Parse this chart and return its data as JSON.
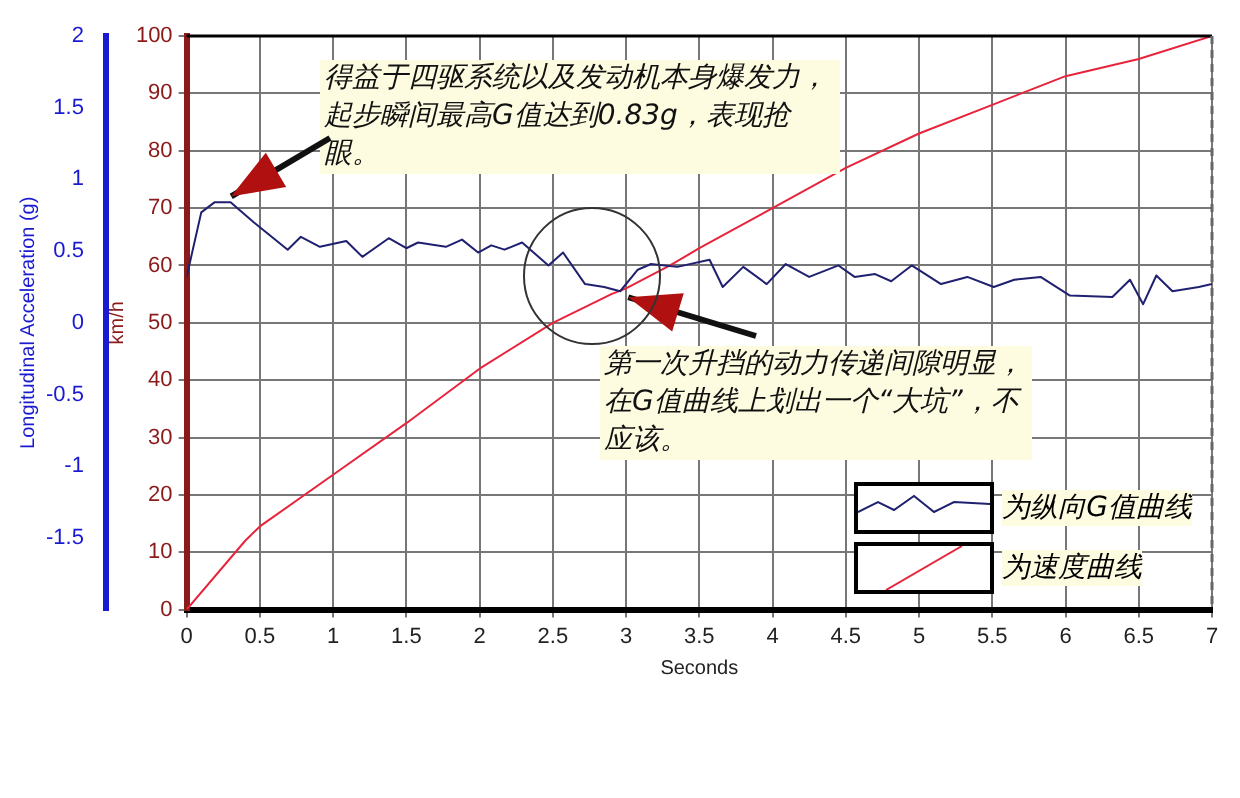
{
  "chart_data": {
    "type": "line",
    "xlabel": "Seconds",
    "ylabel": "Longitudinal Acceleration (g)",
    "y2label": "km/h",
    "xlim": [
      0,
      7
    ],
    "xticks": [
      0,
      0.5,
      1,
      1.5,
      2,
      2.5,
      3,
      3.5,
      4,
      4.5,
      5,
      5.5,
      6,
      6.5,
      7
    ],
    "ylim": [
      -2,
      2
    ],
    "yticks": [
      -1.5,
      -1,
      -0.5,
      0,
      0.5,
      1,
      1.5,
      2
    ],
    "y2lim": [
      0,
      100
    ],
    "y2ticks": [
      0,
      10,
      20,
      30,
      40,
      50,
      60,
      70,
      80,
      90,
      100
    ],
    "grid": true,
    "legend": "bottom right",
    "marker": "none",
    "line_style": "solid",
    "annotations": [
      {
        "text": "得益于四驱系统以及发动机本身爆发力，起步瞬间最高G值达到0.83g，表现抢眼。",
        "x": 0.25,
        "y": 0.84
      },
      {
        "text": "第一次升挡的动力传递间隙明显，在G值曲线上划出一个“大坑”，不应该。",
        "x": 2.96,
        "y": 0.22
      }
    ],
    "series": [
      {
        "name": "为纵向G值曲线",
        "color": "#202070",
        "x": [
          0,
          0.1,
          0.19,
          0.3,
          0.46,
          0.69,
          0.78,
          0.91,
          1.09,
          1.2,
          1.38,
          1.5,
          1.58,
          1.77,
          1.88,
          1.99,
          2.08,
          2.17,
          2.29,
          2.47,
          2.57,
          2.72,
          2.85,
          2.96,
          3.08,
          3.17,
          3.35,
          3.57,
          3.66,
          3.8,
          3.96,
          4.09,
          4.25,
          4.45,
          4.56,
          4.7,
          4.81,
          4.95,
          5.15,
          5.33,
          5.51,
          5.65,
          5.83,
          6.03,
          6.32,
          6.44,
          6.53,
          6.62,
          6.73,
          6.91,
          7.0
        ],
        "values": [
          0.32,
          0.77,
          0.84,
          0.84,
          0.7,
          0.51,
          0.6,
          0.53,
          0.57,
          0.46,
          0.59,
          0.52,
          0.56,
          0.53,
          0.58,
          0.49,
          0.54,
          0.51,
          0.56,
          0.4,
          0.49,
          0.27,
          0.25,
          0.22,
          0.37,
          0.41,
          0.39,
          0.44,
          0.25,
          0.39,
          0.27,
          0.41,
          0.32,
          0.4,
          0.32,
          0.34,
          0.29,
          0.4,
          0.27,
          0.32,
          0.25,
          0.3,
          0.32,
          0.19,
          0.18,
          0.3,
          0.13,
          0.33,
          0.22,
          0.25,
          0.27
        ]
      },
      {
        "name": "为速度曲线",
        "color": "#e8243c",
        "axis": "y2",
        "x": [
          0,
          0.4,
          0.5,
          1,
          1.5,
          2,
          2.5,
          2.9,
          3,
          3.3,
          3.5,
          4,
          4.5,
          5,
          5.5,
          6,
          6.5,
          7
        ],
        "values": [
          0,
          12,
          14.5,
          23.5,
          32.5,
          42,
          50,
          55,
          56,
          60,
          63,
          70,
          77,
          83,
          88,
          93,
          96,
          100
        ]
      }
    ]
  }
}
